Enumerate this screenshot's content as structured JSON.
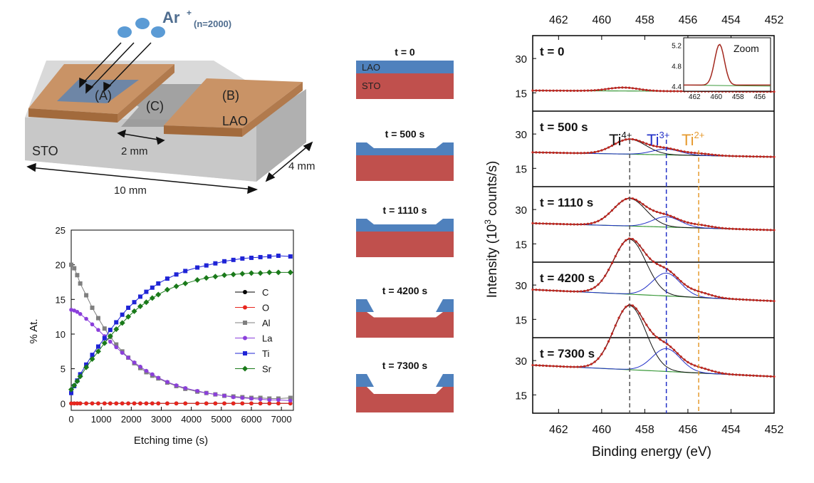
{
  "schematic": {
    "ion_label": "Ar",
    "ion_sup": "+",
    "ion_count": "(n=2000)",
    "region_a": "(A)",
    "region_b": "(B)",
    "region_c": "(C)",
    "lao": "LAO",
    "sto": "STO",
    "dim_gap": "2 mm",
    "dim_length": "10 mm",
    "dim_width": "4 mm"
  },
  "profiles": {
    "lao": "LAO",
    "sto": "STO",
    "times": [
      "t = 0",
      "t = 500 s",
      "t = 1110 s",
      "t = 4200 s",
      "t = 7300 s"
    ],
    "etch_fraction": [
      0,
      0.3,
      0.5,
      0.75,
      1.0
    ]
  },
  "colors": {
    "lao_blue": "#4f81bd",
    "sto_red": "#c0504d",
    "ti4": "#000000",
    "ti3": "#2432c8",
    "ti2": "#e69a2e"
  },
  "chart_data": [
    {
      "type": "line",
      "xlabel": "Etching time (s)",
      "ylabel": "% At.",
      "xlim": [
        0,
        7400
      ],
      "ylim": [
        -1,
        25
      ],
      "xticks": [
        0,
        1000,
        2000,
        3000,
        4000,
        5000,
        6000,
        7000
      ],
      "yticks": [
        0,
        5,
        10,
        15,
        20,
        25
      ],
      "legend": "right",
      "x": [
        0,
        100,
        200,
        300,
        500,
        700,
        900,
        1110,
        1300,
        1500,
        1700,
        1900,
        2100,
        2300,
        2500,
        2700,
        2900,
        3200,
        3500,
        3800,
        4200,
        4500,
        4800,
        5100,
        5400,
        5700,
        6000,
        6300,
        6600,
        6900,
        7300
      ],
      "series": [
        {
          "name": "C",
          "color": "#000000",
          "marker": "circle",
          "values": [
            0,
            0,
            0,
            0,
            0,
            0,
            0,
            0,
            0,
            0,
            0,
            0,
            0,
            0,
            0,
            0,
            0,
            0,
            0,
            0,
            0,
            0,
            0,
            0,
            0,
            0,
            0,
            0,
            0,
            0,
            0
          ]
        },
        {
          "name": "O",
          "color": "#e8261e",
          "marker": "circle",
          "values": [
            0,
            0,
            0,
            0,
            0,
            0,
            0,
            0,
            0,
            0,
            0,
            0,
            0,
            0,
            0,
            0,
            0,
            0,
            0,
            0,
            0,
            0,
            0,
            0,
            0,
            0,
            0,
            0,
            0,
            0,
            0
          ]
        },
        {
          "name": "Al",
          "color": "#7f7f7f",
          "marker": "square",
          "values": [
            20,
            19.5,
            18.5,
            17.3,
            15.6,
            13.8,
            12.3,
            10.8,
            9.6,
            8.5,
            7.5,
            6.6,
            5.8,
            5.1,
            4.5,
            4.0,
            3.6,
            3.0,
            2.5,
            2.1,
            1.7,
            1.5,
            1.3,
            1.1,
            1.0,
            0.9,
            0.8,
            0.8,
            0.7,
            0.7,
            0.8
          ]
        },
        {
          "name": "La",
          "color": "#8b3fdb",
          "marker": "circle",
          "values": [
            13.5,
            13.4,
            13.2,
            12.9,
            12.2,
            11.4,
            10.6,
            9.7,
            8.9,
            8.1,
            7.3,
            6.6,
            5.9,
            5.3,
            4.7,
            4.2,
            3.7,
            3.1,
            2.6,
            2.2,
            1.8,
            1.5,
            1.3,
            1.1,
            0.9,
            0.8,
            0.7,
            0.6,
            0.5,
            0.5,
            0.4
          ]
        },
        {
          "name": "Ti",
          "color": "#1f24d6",
          "marker": "square",
          "values": [
            1.5,
            2.5,
            3.3,
            4.2,
            5.6,
            7.0,
            8.2,
            9.4,
            10.6,
            11.7,
            12.8,
            13.8,
            14.6,
            15.4,
            16.1,
            16.7,
            17.3,
            18.0,
            18.6,
            19.1,
            19.6,
            19.9,
            20.2,
            20.5,
            20.7,
            20.9,
            21.0,
            21.1,
            21.2,
            21.3,
            21.2
          ]
        },
        {
          "name": "Sr",
          "color": "#1a7a1a",
          "marker": "diamond",
          "values": [
            2.0,
            2.6,
            3.2,
            3.9,
            5.2,
            6.4,
            7.5,
            8.7,
            9.7,
            10.7,
            11.6,
            12.5,
            13.3,
            14.0,
            14.6,
            15.2,
            15.7,
            16.4,
            16.9,
            17.3,
            17.8,
            18.1,
            18.3,
            18.5,
            18.6,
            18.7,
            18.8,
            18.8,
            18.9,
            18.9,
            18.9
          ]
        }
      ]
    },
    {
      "type": "line",
      "xlabel": "Binding energy (eV)",
      "ylabel_main": "Intensity (10",
      "ylabel_sup": "3",
      "ylabel_tail": " counts/s)",
      "xlim": [
        463.2,
        452
      ],
      "xticks": [
        462,
        460,
        458,
        456,
        454,
        452
      ],
      "yticks": [
        15,
        30
      ],
      "ylim": [
        7,
        40
      ],
      "peak_labels": [
        {
          "main": "Ti",
          "sup": "4+",
          "energy": 458.7
        },
        {
          "main": "Ti",
          "sup": "3+",
          "energy": 457.0
        },
        {
          "main": "Ti",
          "sup": "2+",
          "energy": 455.5
        }
      ],
      "panels": [
        {
          "label": "t = 0",
          "ti4": 0,
          "ti3": 0,
          "ti2": 0,
          "bg_low": 8,
          "bg_high": 7.5,
          "small_bump": 1.5
        },
        {
          "label": "t = 500 s",
          "ti4": 6.5,
          "ti3": 2.5,
          "ti2": 0.8,
          "bg_low": 11,
          "bg_high": 9,
          "small_bump": 0
        },
        {
          "label": "t = 1110 s",
          "ti4": 12,
          "ti3": 4.5,
          "ti2": 1.2,
          "bg_low": 12,
          "bg_high": 9,
          "small_bump": 0
        },
        {
          "label": "t = 4200 s",
          "ti4": 24,
          "ti3": 10,
          "ti2": 2,
          "bg_low": 14,
          "bg_high": 9,
          "small_bump": 0
        },
        {
          "label": "t = 7300 s",
          "ti4": 28,
          "ti3": 10,
          "ti2": 2,
          "bg_low": 14,
          "bg_high": 9,
          "small_bump": 0
        }
      ],
      "inset": {
        "label": "Zoom",
        "xticks": [
          462,
          460,
          458,
          456
        ],
        "yticks": [
          4.4,
          4.8,
          5.2
        ]
      }
    }
  ]
}
